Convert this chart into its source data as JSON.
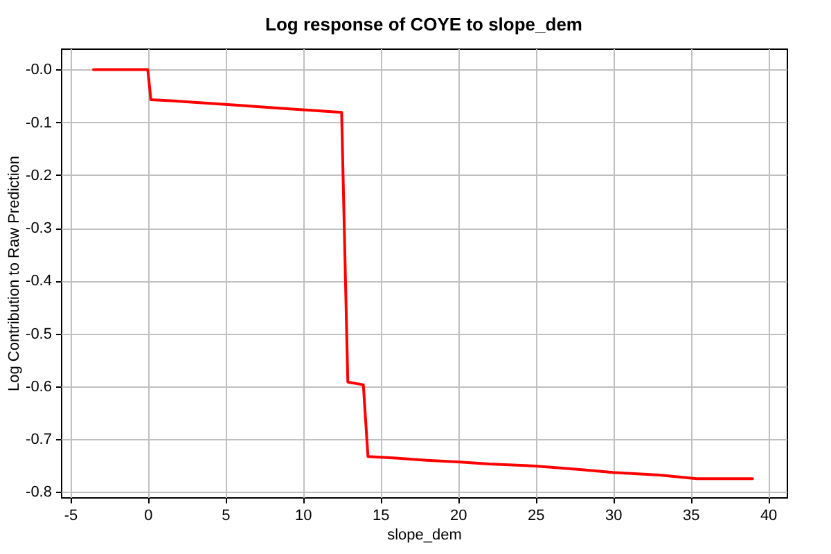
{
  "chart_data": {
    "type": "line",
    "title": "Log response of COYE to slope_dem",
    "xlabel": "slope_dem",
    "ylabel": "Log Contribution to Raw Prediction",
    "x": [
      -3.5,
      0.0,
      0.2,
      2,
      4,
      6,
      8,
      10,
      12.5,
      12.9,
      13.9,
      14.2,
      16,
      18,
      20,
      22,
      25,
      28,
      30,
      33,
      35.4,
      39.0
    ],
    "series": [
      {
        "color": "#ff0000",
        "values": [
          0.0,
          0.0,
          -0.057,
          -0.06,
          -0.064,
          -0.068,
          -0.072,
          -0.076,
          -0.081,
          -0.592,
          -0.597,
          -0.733,
          -0.736,
          -0.74,
          -0.743,
          -0.747,
          -0.751,
          -0.758,
          -0.763,
          -0.768,
          -0.775,
          -0.775
        ]
      }
    ],
    "xlim": [
      -5.6,
      41.2
    ],
    "ylim": [
      -0.81,
      0.04
    ],
    "xticks": [
      -5,
      0,
      5,
      10,
      15,
      20,
      25,
      30,
      35,
      40
    ],
    "yticks": [
      {
        "value": 0,
        "label": "-0.0"
      },
      -0.1,
      -0.2,
      -0.3,
      -0.4,
      -0.5,
      -0.6,
      -0.7,
      -0.8
    ],
    "grid": true
  }
}
